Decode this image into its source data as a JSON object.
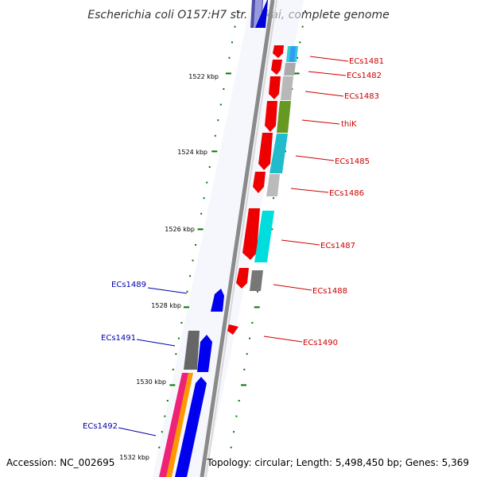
{
  "title": "Escherichia coli O157:H7 str. Sakai, complete genome",
  "footer": {
    "accession": "Accession: NC_002695",
    "summary": "Topology: circular; Length: 5,498,450 bp; Genes: 5,369"
  },
  "colors": {
    "forward_label": "#cc0000",
    "reverse_label": "#0000aa",
    "backbone": "#808080",
    "tick": "#007700",
    "label_line_fwd": "#cc0000",
    "label_line_rev": "#0000aa"
  },
  "kbp_ticks": [
    {
      "label": "1522 kbp",
      "pos_kbp": 1522
    },
    {
      "label": "1524 kbp",
      "pos_kbp": 1524
    },
    {
      "label": "1526 kbp",
      "pos_kbp": 1526
    },
    {
      "label": "1528 kbp",
      "pos_kbp": 1528
    },
    {
      "label": "1530 kbp",
      "pos_kbp": 1530
    },
    {
      "label": "1532 kbp",
      "pos_kbp": 1532
    }
  ],
  "genes_forward": [
    {
      "name": "ECs1481"
    },
    {
      "name": "ECs1482"
    },
    {
      "name": "ECs1483"
    },
    {
      "name": "thiK"
    },
    {
      "name": "ECs1485"
    },
    {
      "name": "ECs1486"
    },
    {
      "name": "ECs1487"
    },
    {
      "name": "ECs1488"
    },
    {
      "name": "ECs1490"
    }
  ],
  "genes_reverse": [
    {
      "name": "ECs1489"
    },
    {
      "name": "ECs1491"
    },
    {
      "name": "ECs1492"
    }
  ]
}
